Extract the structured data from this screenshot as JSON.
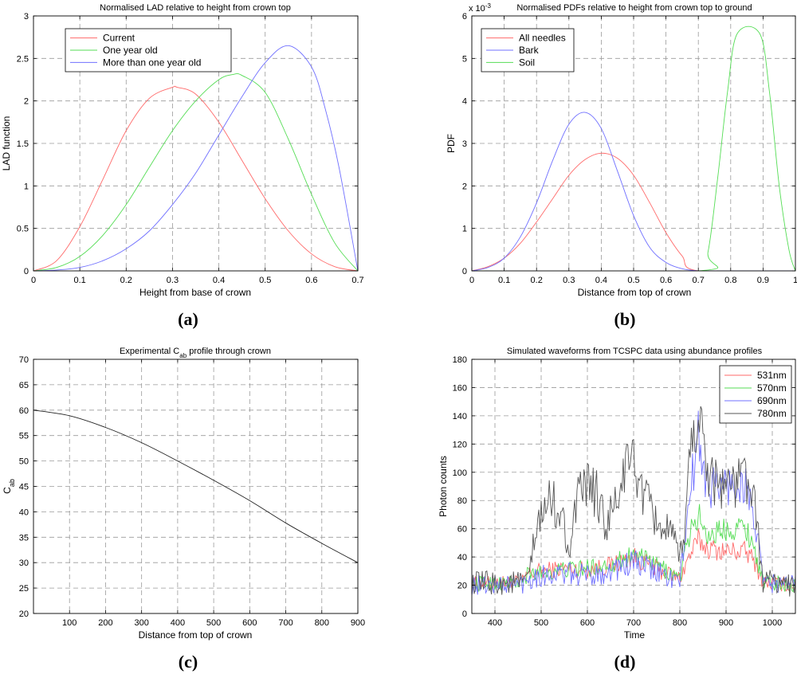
{
  "chart_data": [
    {
      "id": "a",
      "type": "line",
      "panel_label": "(a)",
      "title": "Normalised LAD relative to height from crown top",
      "xlabel": "Height from base of crown",
      "ylabel": "LAD function",
      "xlim": [
        0,
        0.7
      ],
      "ylim": [
        0,
        3
      ],
      "xticks": [
        0,
        0.1,
        0.2,
        0.3,
        0.4,
        0.5,
        0.6,
        0.7
      ],
      "yticks": [
        0,
        0.5,
        1,
        1.5,
        2,
        2.5,
        3
      ],
      "grid": true,
      "legend_position": "top-left",
      "series": [
        {
          "name": "Current",
          "color": "#ff6a6a",
          "x": [
            0,
            0.05,
            0.1,
            0.15,
            0.2,
            0.25,
            0.3,
            0.31,
            0.35,
            0.4,
            0.45,
            0.5,
            0.55,
            0.6,
            0.65,
            0.7
          ],
          "y": [
            0,
            0.12,
            0.52,
            1.08,
            1.65,
            2.03,
            2.16,
            2.16,
            2.08,
            1.75,
            1.3,
            0.85,
            0.47,
            0.2,
            0.05,
            0
          ]
        },
        {
          "name": "One year old",
          "color": "#55dd55",
          "x": [
            0,
            0.05,
            0.1,
            0.15,
            0.2,
            0.25,
            0.3,
            0.35,
            0.4,
            0.43,
            0.45,
            0.5,
            0.55,
            0.6,
            0.65,
            0.7
          ],
          "y": [
            0,
            0.04,
            0.17,
            0.42,
            0.78,
            1.22,
            1.65,
            2.0,
            2.25,
            2.31,
            2.3,
            2.1,
            1.55,
            0.9,
            0.33,
            0
          ]
        },
        {
          "name": "More than one year old",
          "color": "#7070ff",
          "x": [
            0,
            0.05,
            0.1,
            0.15,
            0.2,
            0.25,
            0.3,
            0.35,
            0.4,
            0.45,
            0.5,
            0.55,
            0.6,
            0.63,
            0.66,
            0.7
          ],
          "y": [
            0,
            0.01,
            0.04,
            0.12,
            0.26,
            0.47,
            0.78,
            1.15,
            1.6,
            2.05,
            2.45,
            2.65,
            2.4,
            1.9,
            1.2,
            0
          ]
        }
      ]
    },
    {
      "id": "b",
      "type": "line",
      "panel_label": "(b)",
      "title": "Normalised PDFs relative to height from crown top to ground",
      "exponent_label": "x 10",
      "exponent_power": "-3",
      "xlabel": "Distance from top of crown",
      "ylabel": "PDF",
      "xlim": [
        0,
        1
      ],
      "ylim": [
        0,
        6
      ],
      "xticks": [
        0,
        0.1,
        0.2,
        0.3,
        0.4,
        0.5,
        0.6,
        0.7,
        0.8,
        0.9,
        1
      ],
      "yticks": [
        0,
        1,
        2,
        3,
        4,
        5,
        6
      ],
      "grid": true,
      "legend_position": "top-left",
      "series": [
        {
          "name": "All needles",
          "color": "#ff6a6a",
          "x": [
            0,
            0.05,
            0.1,
            0.15,
            0.2,
            0.25,
            0.3,
            0.35,
            0.4,
            0.45,
            0.5,
            0.55,
            0.6,
            0.65,
            0.7,
            1
          ],
          "y": [
            0,
            0.1,
            0.3,
            0.65,
            1.15,
            1.7,
            2.25,
            2.62,
            2.77,
            2.65,
            2.25,
            1.6,
            0.9,
            0.35,
            0,
            0
          ]
        },
        {
          "name": "Bark",
          "color": "#7070ff",
          "x": [
            0,
            0.05,
            0.1,
            0.15,
            0.2,
            0.25,
            0.3,
            0.35,
            0.4,
            0.45,
            0.5,
            0.55,
            0.6,
            0.65,
            0.7,
            0.75,
            1
          ],
          "y": [
            0,
            0.08,
            0.3,
            0.8,
            1.6,
            2.6,
            3.45,
            3.73,
            3.35,
            2.35,
            1.3,
            0.55,
            0.2,
            0.05,
            0,
            0,
            0
          ]
        },
        {
          "name": "Soil",
          "color": "#55dd55",
          "x": [
            0,
            0.7,
            0.73,
            0.76,
            0.79,
            0.82,
            0.89,
            0.92,
            0.95,
            0.98,
            1
          ],
          "y": [
            0,
            0,
            0.45,
            2.2,
            4.2,
            5.58,
            5.58,
            4.2,
            2.0,
            0.5,
            0
          ]
        }
      ]
    },
    {
      "id": "c",
      "type": "line",
      "panel_label": "(c)",
      "title": "Experimental C",
      "title_subscript": "ab",
      "title_suffix": " profile through crown",
      "xlabel": "Distance from top of crown",
      "ylabel": "C",
      "ylabel_subscript": "ab",
      "xlim": [
        0,
        900
      ],
      "ylim": [
        20,
        70
      ],
      "xticks": [
        100,
        200,
        300,
        400,
        500,
        600,
        700,
        800,
        900
      ],
      "yticks": [
        20,
        25,
        30,
        35,
        40,
        45,
        50,
        55,
        60,
        65,
        70
      ],
      "grid": true,
      "series": [
        {
          "name": "Cab",
          "color": "#222222",
          "x": [
            0,
            100,
            200,
            300,
            400,
            500,
            600,
            700,
            800,
            900
          ],
          "y": [
            60,
            58.9,
            56.6,
            53.6,
            50.0,
            46.2,
            42.2,
            37.8,
            33.8,
            30.0
          ]
        }
      ]
    },
    {
      "id": "d",
      "type": "line",
      "panel_label": "(d)",
      "title": "Simulated waveforms from TCSPC data using abundance profiles",
      "xlabel": "Time",
      "ylabel": "Photon counts",
      "xlim": [
        350,
        1050
      ],
      "ylim": [
        0,
        180
      ],
      "xticks": [
        400,
        500,
        600,
        700,
        800,
        900,
        1000
      ],
      "yticks": [
        0,
        20,
        40,
        60,
        80,
        100,
        120,
        140,
        160,
        180
      ],
      "grid": true,
      "legend_position": "top-right",
      "series": [
        {
          "name": "531nm",
          "color": "#ff6a6a",
          "x": [
            350,
            460,
            470,
            500,
            550,
            600,
            650,
            700,
            760,
            800,
            820,
            840,
            860,
            900,
            940,
            960,
            980,
            1050
          ],
          "y": [
            21,
            22,
            28,
            30,
            32,
            31,
            34,
            40,
            30,
            25,
            40,
            52,
            46,
            44,
            44,
            38,
            22,
            20
          ]
        },
        {
          "name": "570nm",
          "color": "#55dd55",
          "x": [
            350,
            460,
            470,
            500,
            550,
            600,
            650,
            700,
            760,
            800,
            820,
            840,
            860,
            900,
            940,
            960,
            980,
            1050
          ],
          "y": [
            21,
            22,
            27,
            29,
            31,
            32,
            35,
            42,
            32,
            25,
            55,
            70,
            55,
            60,
            62,
            48,
            22,
            20
          ]
        },
        {
          "name": "690nm",
          "color": "#7070ff",
          "x": [
            350,
            460,
            470,
            500,
            550,
            600,
            650,
            700,
            760,
            800,
            820,
            840,
            860,
            900,
            940,
            960,
            980,
            1050
          ],
          "y": [
            20,
            21,
            25,
            27,
            28,
            27,
            30,
            36,
            28,
            22,
            80,
            125,
            90,
            90,
            92,
            70,
            22,
            20
          ]
        },
        {
          "name": "780nm",
          "color": "#555555",
          "x": [
            350,
            470,
            480,
            490,
            500,
            520,
            540,
            560,
            580,
            600,
            620,
            640,
            660,
            680,
            700,
            720,
            740,
            760,
            780,
            800,
            810,
            820,
            830,
            840,
            860,
            880,
            900,
            920,
            940,
            960,
            980,
            1050
          ],
          "y": [
            21,
            22,
            40,
            58,
            68,
            82,
            72,
            48,
            80,
            92,
            84,
            62,
            75,
            100,
            110,
            84,
            70,
            62,
            55,
            38,
            60,
            105,
            130,
            140,
            105,
            92,
            95,
            88,
            102,
            78,
            24,
            20
          ]
        }
      ]
    }
  ]
}
